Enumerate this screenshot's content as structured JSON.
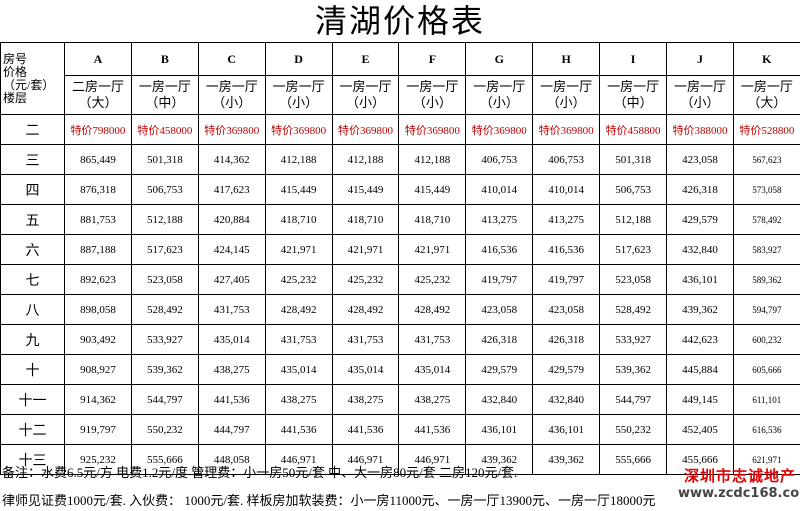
{
  "title": "清湖价格表",
  "header": {
    "corner": [
      "房号",
      "价格",
      "（元/套）",
      "楼层"
    ],
    "columns": [
      {
        "letter": "A",
        "type1": "二房一厅",
        "type2": "（大）"
      },
      {
        "letter": "B",
        "type1": "一房一厅",
        "type2": "（中）"
      },
      {
        "letter": "C",
        "type1": "一房一厅",
        "type2": "（小）"
      },
      {
        "letter": "D",
        "type1": "一房一厅",
        "type2": "（小）"
      },
      {
        "letter": "E",
        "type1": "一房一厅",
        "type2": "（小）"
      },
      {
        "letter": "F",
        "type1": "一房一厅",
        "type2": "（小）"
      },
      {
        "letter": "G",
        "type1": "一房一厅",
        "type2": "（小）"
      },
      {
        "letter": "H",
        "type1": "一房一厅",
        "type2": "（小）"
      },
      {
        "letter": "I",
        "type1": "一房一厅",
        "type2": "（中）"
      },
      {
        "letter": "J",
        "type1": "一房一厅",
        "type2": "（小）"
      },
      {
        "letter": "K",
        "type1": "一房一厅",
        "type2": "（大）"
      }
    ]
  },
  "rows": [
    {
      "floor": "二",
      "special": true,
      "values": [
        "特价798000",
        "特价458000",
        "特价369800",
        "特价369800",
        "特价369800",
        "特价369800",
        "特价369800",
        "特价369800",
        "特价458800",
        "特价388000",
        "特价528800"
      ]
    },
    {
      "floor": "三",
      "values": [
        "865,449",
        "501,318",
        "414,362",
        "412,188",
        "412,188",
        "412,188",
        "406,753",
        "406,753",
        "501,318",
        "423,058",
        "567,623"
      ]
    },
    {
      "floor": "四",
      "values": [
        "876,318",
        "506,753",
        "417,623",
        "415,449",
        "415,449",
        "415,449",
        "410,014",
        "410,014",
        "506,753",
        "426,318",
        "573,058"
      ]
    },
    {
      "floor": "五",
      "values": [
        "881,753",
        "512,188",
        "420,884",
        "418,710",
        "418,710",
        "418,710",
        "413,275",
        "413,275",
        "512,188",
        "429,579",
        "578,492"
      ]
    },
    {
      "floor": "六",
      "values": [
        "887,188",
        "517,623",
        "424,145",
        "421,971",
        "421,971",
        "421,971",
        "416,536",
        "416,536",
        "517,623",
        "432,840",
        "583,927"
      ]
    },
    {
      "floor": "七",
      "values": [
        "892,623",
        "523,058",
        "427,405",
        "425,232",
        "425,232",
        "425,232",
        "419,797",
        "419,797",
        "523,058",
        "436,101",
        "589,362"
      ]
    },
    {
      "floor": "八",
      "values": [
        "898,058",
        "528,492",
        "431,753",
        "428,492",
        "428,492",
        "428,492",
        "423,058",
        "423,058",
        "528,492",
        "439,362",
        "594,797"
      ]
    },
    {
      "floor": "九",
      "values": [
        "903,492",
        "533,927",
        "435,014",
        "431,753",
        "431,753",
        "431,753",
        "426,318",
        "426,318",
        "533,927",
        "442,623",
        "600,232"
      ]
    },
    {
      "floor": "十",
      "values": [
        "908,927",
        "539,362",
        "438,275",
        "435,014",
        "435,014",
        "435,014",
        "429,579",
        "429,579",
        "539,362",
        "445,884",
        "605,666"
      ]
    },
    {
      "floor": "十一",
      "values": [
        "914,362",
        "544,797",
        "441,536",
        "438,275",
        "438,275",
        "438,275",
        "432,840",
        "432,840",
        "544,797",
        "449,145",
        "611,101"
      ]
    },
    {
      "floor": "十二",
      "values": [
        "919,797",
        "550,232",
        "444,797",
        "441,536",
        "441,536",
        "441,536",
        "436,101",
        "436,101",
        "550,232",
        "452,405",
        "616,536"
      ]
    },
    {
      "floor": "十三",
      "values": [
        "925,232",
        "555,666",
        "448,058",
        "446,971",
        "446,971",
        "446,971",
        "439,362",
        "439,362",
        "555,666",
        "455,666",
        "621,971"
      ]
    }
  ],
  "notes": {
    "line1": "备注：水费6.5元/方    电费1.2元/度    管理费：小一房50元/套    中、大一房80元/套  二房120元/套.",
    "line2": "律师见证费1000元/套.  入伙费：  1000元/套.  样板房加软装费：小一房11000元、一房一厅13900元、一房一厅18000元"
  },
  "watermark": {
    "name": "深圳市志诚地产",
    "url": "www.zcdc168.com"
  },
  "colors": {
    "special": "#c00000",
    "watermark_red": "#e00000"
  }
}
